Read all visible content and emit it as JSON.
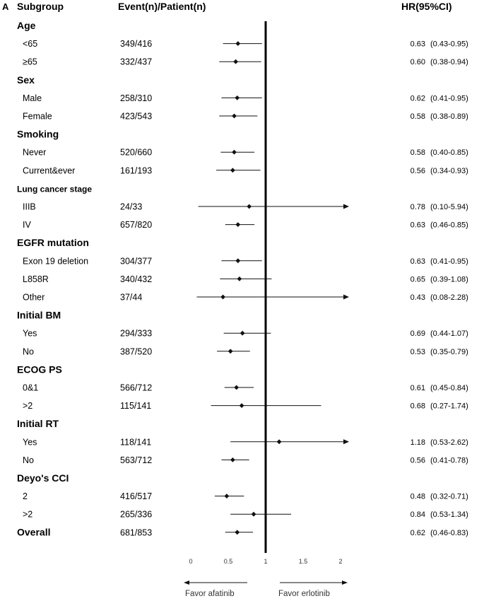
{
  "chart_data": {
    "type": "forest",
    "panel_label": "A",
    "headers": {
      "subgroup": "Subgroup",
      "events": "Event(n)/Patient(n)",
      "hr": "HR(95%CI)"
    },
    "x_axis": {
      "ticks": [
        0,
        0.5,
        1,
        1.5,
        2
      ],
      "tick_labels": [
        "0",
        "0.5",
        "1",
        "1.5",
        "2"
      ],
      "reference_line": 1,
      "favor_left": "Favor afatinib",
      "favor_right": "Favor erlotinib"
    },
    "rows": [
      {
        "kind": "group",
        "label": "Age"
      },
      {
        "kind": "sub",
        "label": "<65",
        "events": "349/416",
        "hr": 0.63,
        "lo": 0.43,
        "hi": 0.95,
        "hr_text": "0.63",
        "ci_text": "(0.43-0.95)"
      },
      {
        "kind": "sub",
        "label": "≥65",
        "events": "332/437",
        "hr": 0.6,
        "lo": 0.38,
        "hi": 0.94,
        "hr_text": "0.60",
        "ci_text": "(0.38-0.94)"
      },
      {
        "kind": "group",
        "label": "Sex"
      },
      {
        "kind": "sub",
        "label": "Male",
        "events": "258/310",
        "hr": 0.62,
        "lo": 0.41,
        "hi": 0.95,
        "hr_text": "0.62",
        "ci_text": "(0.41-0.95)"
      },
      {
        "kind": "sub",
        "label": "Female",
        "events": "423/543",
        "hr": 0.58,
        "lo": 0.38,
        "hi": 0.89,
        "hr_text": "0.58",
        "ci_text": "(0.38-0.89)"
      },
      {
        "kind": "group",
        "label": "Smoking"
      },
      {
        "kind": "sub",
        "label": "Never",
        "events": "520/660",
        "hr": 0.58,
        "lo": 0.4,
        "hi": 0.85,
        "hr_text": "0.58",
        "ci_text": "(0.40-0.85)"
      },
      {
        "kind": "sub",
        "label": "Current&ever",
        "events": "161/193",
        "hr": 0.56,
        "lo": 0.34,
        "hi": 0.93,
        "hr_text": "0.56",
        "ci_text": "(0.34-0.93)"
      },
      {
        "kind": "group-small",
        "label": "Lung cancer stage"
      },
      {
        "kind": "sub",
        "label": "IIIB",
        "events": "24/33",
        "hr": 0.78,
        "lo": 0.1,
        "hi": 5.94,
        "hr_text": "0.78",
        "ci_text": "(0.10-5.94)"
      },
      {
        "kind": "sub",
        "label": "IV",
        "events": "657/820",
        "hr": 0.63,
        "lo": 0.46,
        "hi": 0.85,
        "hr_text": "0.63",
        "ci_text": "(0.46-0.85)"
      },
      {
        "kind": "group",
        "label": "EGFR mutation"
      },
      {
        "kind": "sub",
        "label": "Exon 19 deletion",
        "events": "304/377",
        "hr": 0.63,
        "lo": 0.41,
        "hi": 0.95,
        "hr_text": "0.63",
        "ci_text": "(0.41-0.95)"
      },
      {
        "kind": "sub",
        "label": "L858R",
        "events": "340/432",
        "hr": 0.65,
        "lo": 0.39,
        "hi": 1.08,
        "hr_text": "0.65",
        "ci_text": "(0.39-1.08)"
      },
      {
        "kind": "sub",
        "label": "Other",
        "events": "37/44",
        "hr": 0.43,
        "lo": 0.08,
        "hi": 2.28,
        "hr_text": "0.43",
        "ci_text": "(0.08-2.28)"
      },
      {
        "kind": "group",
        "label": "Initial BM"
      },
      {
        "kind": "sub",
        "label": "Yes",
        "events": "294/333",
        "hr": 0.69,
        "lo": 0.44,
        "hi": 1.07,
        "hr_text": "0.69",
        "ci_text": "(0.44-1.07)"
      },
      {
        "kind": "sub",
        "label": "No",
        "events": "387/520",
        "hr": 0.53,
        "lo": 0.35,
        "hi": 0.79,
        "hr_text": "0.53",
        "ci_text": "(0.35-0.79)"
      },
      {
        "kind": "group",
        "label": "ECOG PS"
      },
      {
        "kind": "sub",
        "label": "0&1",
        "events": "566/712",
        "hr": 0.61,
        "lo": 0.45,
        "hi": 0.84,
        "hr_text": "0.61",
        "ci_text": "(0.45-0.84)"
      },
      {
        "kind": "sub",
        "label": ">2",
        "events": "115/141",
        "hr": 0.68,
        "lo": 0.27,
        "hi": 1.74,
        "hr_text": "0.68",
        "ci_text": "(0.27-1.74)"
      },
      {
        "kind": "group",
        "label": "Initial RT"
      },
      {
        "kind": "sub",
        "label": "Yes",
        "events": "118/141",
        "hr": 1.18,
        "lo": 0.53,
        "hi": 2.62,
        "hr_text": "1.18",
        "ci_text": "(0.53-2.62)"
      },
      {
        "kind": "sub",
        "label": "No",
        "events": "563/712",
        "hr": 0.56,
        "lo": 0.41,
        "hi": 0.78,
        "hr_text": "0.56",
        "ci_text": "(0.41-0.78)"
      },
      {
        "kind": "group",
        "label": "Deyo's CCI"
      },
      {
        "kind": "sub",
        "label": "2",
        "events": "416/517",
        "hr": 0.48,
        "lo": 0.32,
        "hi": 0.71,
        "hr_text": "0.48",
        "ci_text": "(0.32-0.71)"
      },
      {
        "kind": "sub",
        "label": ">2",
        "events": "265/336",
        "hr": 0.84,
        "lo": 0.53,
        "hi": 1.34,
        "hr_text": "0.84",
        "ci_text": "(0.53-1.34)"
      },
      {
        "kind": "overall",
        "label": "Overall",
        "events": "681/853",
        "hr": 0.62,
        "lo": 0.46,
        "hi": 0.83,
        "hr_text": "0.62",
        "ci_text": "(0.46-0.83)"
      }
    ]
  }
}
